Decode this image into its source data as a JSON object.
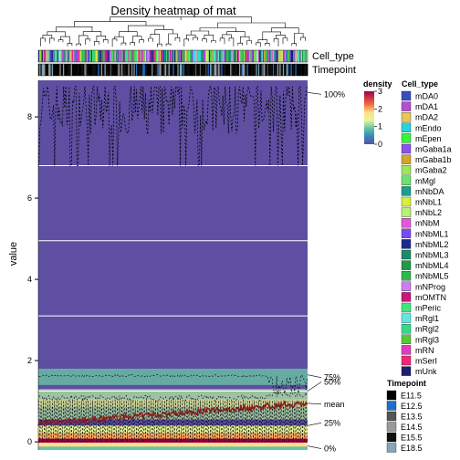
{
  "chart_data": {
    "type": "heatmap",
    "title": "Density heatmap of mat",
    "ylabel": "value",
    "ylim": [
      -0.2,
      8.9
    ],
    "y_ticks": [
      0,
      2,
      4,
      6,
      8
    ],
    "columns": 240,
    "annotations": [
      "Cell_type",
      "Timepoint"
    ],
    "quantile_labels": [
      "100%",
      "75%",
      "50%",
      "mean",
      "25%",
      "0%"
    ],
    "quantile_values": {
      "q100": 8.6,
      "q75": 1.65,
      "q50": 1.25,
      "mean": 0.95,
      "q25": 0.4,
      "q0": -0.1
    },
    "gridlines": [
      1.25,
      3.1,
      4.95,
      6.8
    ],
    "density_legend": {
      "title": "density",
      "ticks": [
        3,
        2,
        1,
        0
      ],
      "max": 3
    },
    "colors": {
      "background": "#5e4fa2",
      "mean_line": "#8b1a1a",
      "density_scale": [
        "#5e4fa2",
        "#3288bd",
        "#66c2a5",
        "#abdda4",
        "#e6f598",
        "#ffffbf",
        "#fee08b",
        "#fdae61",
        "#f46d43",
        "#d53e4f",
        "#9e0142"
      ]
    },
    "cell_type_legend": {
      "title": "Cell_type",
      "items": [
        {
          "label": "mDA0",
          "color": "#3b4cc0"
        },
        {
          "label": "mDA1",
          "color": "#b44fd0"
        },
        {
          "label": "mDA2",
          "color": "#e8c65a"
        },
        {
          "label": "mEndo",
          "color": "#2bd4d4"
        },
        {
          "label": "mEpen",
          "color": "#3cf23c"
        },
        {
          "label": "mGaba1a",
          "color": "#8b52e8"
        },
        {
          "label": "mGaba1b",
          "color": "#d3a52c"
        },
        {
          "label": "mGaba2",
          "color": "#9be85a"
        },
        {
          "label": "mMgl",
          "color": "#6ee06e"
        },
        {
          "label": "mNbDA",
          "color": "#1aa08c"
        },
        {
          "label": "mNbL1",
          "color": "#d6f03c"
        },
        {
          "label": "mNbL2",
          "color": "#b8f07a"
        },
        {
          "label": "mNbM",
          "color": "#e05ad8"
        },
        {
          "label": "mNbML1",
          "color": "#7a4cf0"
        },
        {
          "label": "mNbML2",
          "color": "#1c2a8c"
        },
        {
          "label": "mNbML3",
          "color": "#1a8c6c"
        },
        {
          "label": "mNbML4",
          "color": "#1e9a46"
        },
        {
          "label": "mNbML5",
          "color": "#2eb84e"
        },
        {
          "label": "mNProg",
          "color": "#c880f0"
        },
        {
          "label": "mOMTN",
          "color": "#c8187a"
        },
        {
          "label": "mPeric",
          "color": "#3ce87a"
        },
        {
          "label": "mRgl1",
          "color": "#66e6e0"
        },
        {
          "label": "mRgl2",
          "color": "#38d88c"
        },
        {
          "label": "mRgl3",
          "color": "#58c83a"
        },
        {
          "label": "mRN",
          "color": "#e03cc0"
        },
        {
          "label": "mSerI",
          "color": "#f0287a"
        },
        {
          "label": "mUnk",
          "color": "#1e1e6e"
        }
      ]
    },
    "timepoint_legend": {
      "title": "Timepoint",
      "items": [
        {
          "label": "E11.5",
          "color": "#000000"
        },
        {
          "label": "E12.5",
          "color": "#1f6fd0"
        },
        {
          "label": "E13.5",
          "color": "#555555"
        },
        {
          "label": "E14.5",
          "color": "#9a9a9a"
        },
        {
          "label": "E15.5",
          "color": "#111111"
        },
        {
          "label": "E18.5",
          "color": "#7fa7b8"
        }
      ]
    }
  }
}
